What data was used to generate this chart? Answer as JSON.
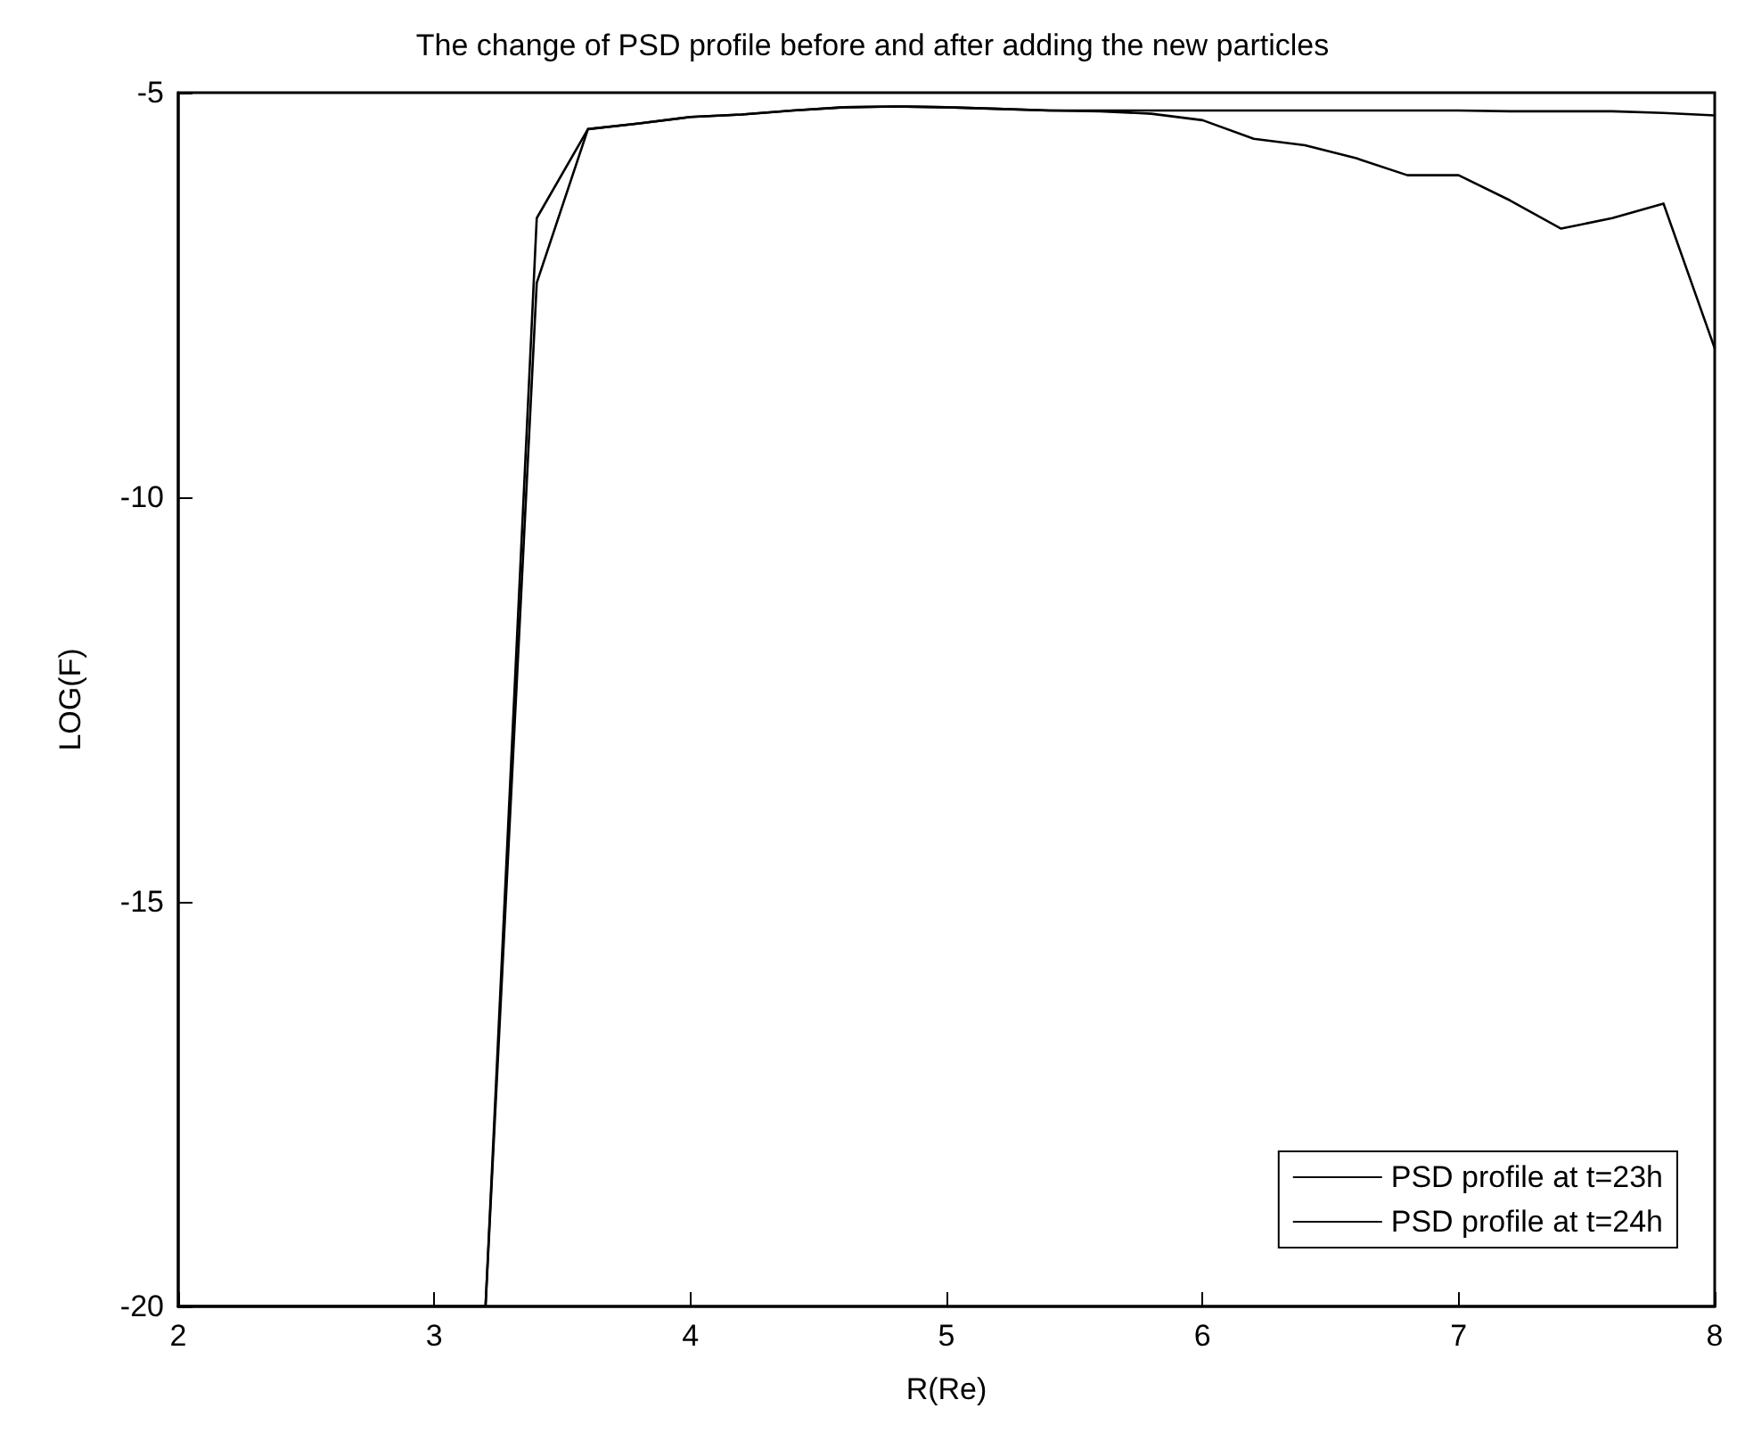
{
  "chart_data": {
    "type": "line",
    "title": "The change of PSD profile before and after adding the new particles",
    "xlabel": "R(Re)",
    "ylabel": "LOG(F)",
    "x": [
      2,
      3.2,
      3.4,
      3.6,
      3.8,
      4,
      4.2,
      4.4,
      4.6,
      4.8,
      5,
      5.2,
      5.4,
      5.6,
      5.8,
      6,
      6.2,
      6.4,
      6.6,
      6.8,
      7,
      7.2,
      7.4,
      7.6,
      7.8,
      8
    ],
    "series": [
      {
        "name": "PSD profile at t=23h",
        "color": "#000000",
        "values": [
          -20,
          -20,
          -7.35,
          -5.45,
          -5.38,
          -5.3,
          -5.27,
          -5.22,
          -5.18,
          -5.17,
          -5.18,
          -5.2,
          -5.22,
          -5.22,
          -5.22,
          -5.22,
          -5.22,
          -5.22,
          -5.22,
          -5.22,
          -5.22,
          -5.23,
          -5.23,
          -5.23,
          -5.25,
          -5.28
        ]
      },
      {
        "name": "PSD profile at t=24h",
        "color": "#000000",
        "values": [
          -20,
          -20,
          -6.55,
          -5.45,
          -5.38,
          -5.3,
          -5.27,
          -5.22,
          -5.18,
          -5.17,
          -5.18,
          -5.2,
          -5.22,
          -5.23,
          -5.26,
          -5.34,
          -5.57,
          -5.65,
          -5.81,
          -6.02,
          -6.02,
          -6.33,
          -6.68,
          -6.55,
          -6.37,
          -8.16
        ]
      }
    ],
    "xlim": [
      2,
      8
    ],
    "ylim": [
      -20,
      -5
    ],
    "xticks": [
      2,
      3,
      4,
      5,
      6,
      7,
      8
    ],
    "yticks": [
      -20,
      -15,
      -10,
      -5
    ],
    "grid": false,
    "legend": "bottom right",
    "marker": "none",
    "line_style": "solid"
  }
}
